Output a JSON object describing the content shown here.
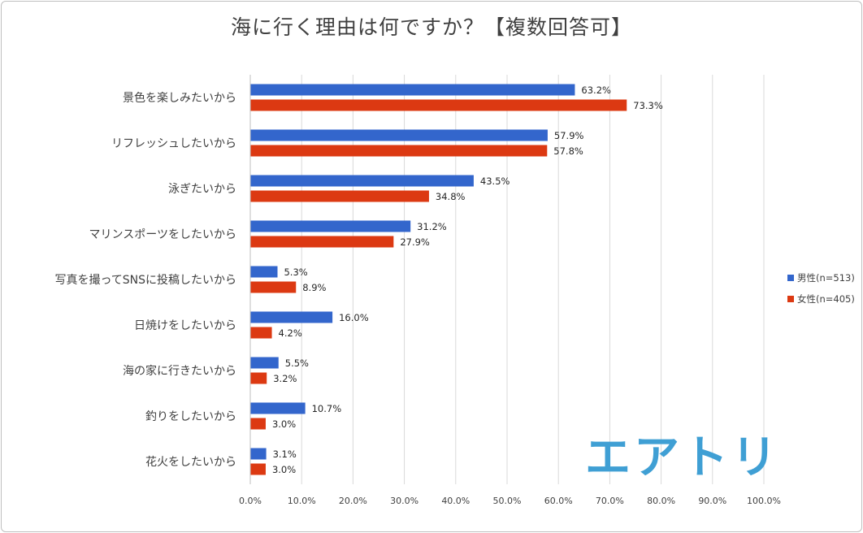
{
  "title": "海に行く理由は何ですか？【複数回答可】",
  "colors": {
    "male": "#3366cc",
    "female": "#dc3912",
    "grid": "#d9d9d9",
    "logo": "#3f9fd4"
  },
  "logo": {
    "text": "エアトリ",
    "icon": "airtrip-logo"
  },
  "chart_data": {
    "type": "bar",
    "orientation": "horizontal",
    "categories": [
      "景色を楽しみたいから",
      "リフレッシュしたいから",
      "泳ぎたいから",
      "マリンスポーツをしたいから",
      "写真を撮ってSNSに投稿したいから",
      "日焼けをしたいから",
      "海の家に行きたいから",
      "釣りをしたいから",
      "花火をしたいから"
    ],
    "series": [
      {
        "name": "男性(n=513)",
        "values": [
          63.2,
          57.9,
          43.5,
          31.2,
          5.3,
          16.0,
          5.5,
          10.7,
          3.1
        ]
      },
      {
        "name": "女性(n=405)",
        "values": [
          73.3,
          57.8,
          34.8,
          27.9,
          8.9,
          4.2,
          3.2,
          3.0,
          3.0
        ]
      }
    ],
    "xlim": [
      0,
      100
    ],
    "xticks": [
      0,
      10,
      20,
      30,
      40,
      50,
      60,
      70,
      80,
      90,
      100
    ],
    "tick_format": "percent_1dp",
    "grid": true,
    "legend": "right"
  }
}
